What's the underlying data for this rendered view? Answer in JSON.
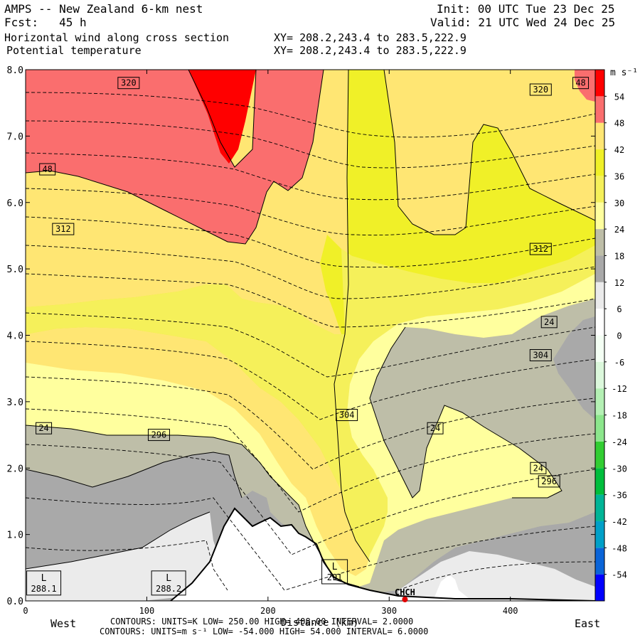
{
  "header": {
    "title": "AMPS -- New Zealand 6-km nest",
    "fcst": "Fcst:   45 h",
    "init": "Init: 00 UTC Tue 23 Dec 25",
    "valid": "Valid: 21 UTC Wed 24 Dec 25",
    "field1": "Horizontal wind along cross section",
    "field2": "Potential temperature",
    "xy1": "XY= 208.2,243.4 to 283.5,222.9",
    "xy2": "XY= 208.2,243.4 to 283.5,222.9"
  },
  "footer": {
    "contours1": "CONTOURS:  UNITS=K  LOW=  250.00     HIGH=  408.00     INTERVAL=   2.0000",
    "contours2": "CONTOURS:  UNITS=m s⁻¹  LOW= -54.000    HIGH=  54.000    INTERVAL=   6.0000",
    "x_axis_label": "Distance (km)",
    "west": "West",
    "east": "East"
  },
  "colorbar": {
    "units": "m s⁻¹",
    "bands": [
      {
        "min": -60,
        "max": -54,
        "color": "#0000ff"
      },
      {
        "min": -54,
        "max": -48,
        "color": "#0a64d8"
      },
      {
        "min": -48,
        "max": -42,
        "color": "#00a0c8"
      },
      {
        "min": -42,
        "max": -36,
        "color": "#00b496"
      },
      {
        "min": -36,
        "max": -30,
        "color": "#00be3c"
      },
      {
        "min": -30,
        "max": -24,
        "color": "#32cd32"
      },
      {
        "min": -24,
        "max": -18,
        "color": "#8ce68c"
      },
      {
        "min": -18,
        "max": -12,
        "color": "#b4f0b4"
      },
      {
        "min": -12,
        "max": -6,
        "color": "#dcf8dc"
      },
      {
        "min": -6,
        "max": 0,
        "color": "#f4fff4"
      },
      {
        "min": 0,
        "max": 6,
        "color": "#ffffff"
      },
      {
        "min": 6,
        "max": 12,
        "color": "#ebebeb"
      },
      {
        "min": 12,
        "max": 18,
        "color": "#a9a9a9"
      },
      {
        "min": 18,
        "max": 24,
        "color": "#bebea8"
      },
      {
        "min": 24,
        "max": 30,
        "color": "#ffff9e"
      },
      {
        "min": 30,
        "max": 36,
        "color": "#f5f05a"
      },
      {
        "min": 36,
        "max": 42,
        "color": "#f0f028"
      },
      {
        "min": 42,
        "max": 48,
        "color": "#ffe673"
      },
      {
        "min": 48,
        "max": 54,
        "color": "#fa6e6e"
      },
      {
        "min": 54,
        "max": 60,
        "color": "#ff0000"
      }
    ],
    "labels": [
      "54",
      "48",
      "42",
      "36",
      "30",
      "24",
      "18",
      "12",
      "6",
      "0",
      "-6",
      "-12",
      "-18",
      "-24",
      "-30",
      "-36",
      "-42",
      "-48",
      "-54"
    ]
  },
  "chart_data": {
    "type": "cross-section",
    "x_ticks": [
      "0",
      "100",
      "200",
      "300",
      "400"
    ],
    "x_tick_values": [
      0,
      100,
      200,
      300,
      400
    ],
    "xlim": [
      0,
      470
    ],
    "y_ticks": [
      "0.0",
      "1.0",
      "2.0",
      "3.0",
      "4.0",
      "5.0",
      "6.0",
      "7.0",
      "8.0"
    ],
    "y_tick_values": [
      0,
      1,
      2,
      3,
      4,
      5,
      6,
      7,
      8
    ],
    "ylim": [
      0,
      8
    ],
    "station": "CHCH",
    "station_x": 313,
    "theta_labels": [
      {
        "text": "320",
        "x": 85,
        "y": 7.8
      },
      {
        "text": "320",
        "x": 425,
        "y": 7.7
      },
      {
        "text": "312",
        "x": 31,
        "y": 5.6
      },
      {
        "text": "312",
        "x": 425,
        "y": 5.3
      },
      {
        "text": "304",
        "x": 265,
        "y": 2.8
      },
      {
        "text": "304",
        "x": 425,
        "y": 3.7
      },
      {
        "text": "296",
        "x": 110,
        "y": 2.5
      },
      {
        "text": "296",
        "x": 432,
        "y": 1.8
      }
    ],
    "wind_labels": [
      {
        "text": "48",
        "x": 18,
        "y": 6.5
      },
      {
        "text": "48",
        "x": 458,
        "y": 7.8
      },
      {
        "text": "24",
        "x": 15,
        "y": 2.6
      },
      {
        "text": "24",
        "x": 432,
        "y": 4.2
      },
      {
        "text": "24",
        "x": 338,
        "y": 2.6
      },
      {
        "text": "24",
        "x": 423,
        "y": 2.0
      }
    ],
    "lows": [
      {
        "label": "L",
        "value": "288.1",
        "x": 15,
        "y": 0.28
      },
      {
        "label": "L",
        "value": "288.2",
        "x": 118,
        "y": 0.28
      },
      {
        "label": "L",
        "value": "291",
        "x": 255,
        "y": 0.45
      }
    ]
  }
}
